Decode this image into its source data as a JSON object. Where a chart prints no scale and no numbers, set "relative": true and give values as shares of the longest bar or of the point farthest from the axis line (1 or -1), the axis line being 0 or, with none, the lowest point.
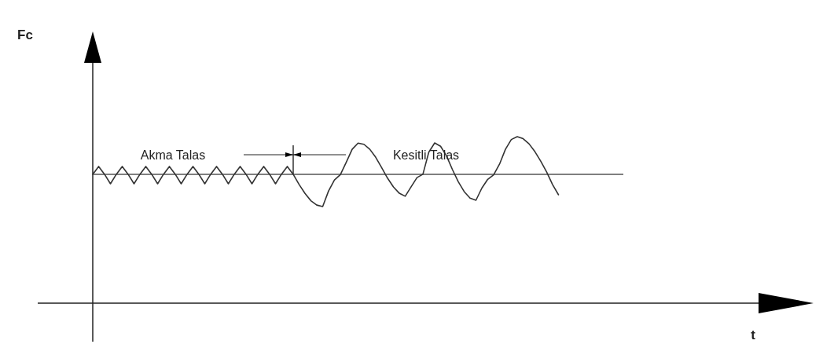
{
  "chart_data": {
    "type": "line",
    "relative": true,
    "categories": [
      null,
      null,
      null,
      null,
      null,
      null,
      null,
      null,
      null,
      null,
      null,
      null,
      null,
      null,
      null,
      null,
      null,
      null,
      null,
      null,
      null,
      null,
      null,
      null,
      null,
      null,
      null,
      null,
      null,
      null,
      null,
      null,
      null,
      null,
      null,
      null,
      null,
      null,
      null,
      null,
      null,
      null,
      null,
      null,
      null,
      null,
      null,
      null,
      null,
      null,
      null,
      null,
      null,
      null,
      null,
      null,
      null,
      null,
      null,
      null,
      null,
      null,
      null,
      null,
      null,
      null,
      null,
      null,
      null,
      null,
      null,
      null,
      null,
      null,
      null,
      null,
      null,
      null,
      null,
      null
    ],
    "series": [
      {
        "color": "#333333",
        "values": [
          0.774,
          0.821,
          0.774,
          0.717,
          0.774,
          0.821,
          0.774,
          0.717,
          0.774,
          0.821,
          0.774,
          0.717,
          0.774,
          0.821,
          0.774,
          0.717,
          0.774,
          0.821,
          0.774,
          0.717,
          0.774,
          0.821,
          0.774,
          0.717,
          0.774,
          0.821,
          0.774,
          0.717,
          0.774,
          0.821,
          0.774,
          0.717,
          0.774,
          0.821,
          0.774,
          0.713,
          0.659,
          0.615,
          0.589,
          0.58,
          0.674,
          0.74,
          0.772,
          0.846,
          0.924,
          0.961,
          0.954,
          0.924,
          0.876,
          0.814,
          0.751,
          0.698,
          0.66,
          0.642,
          0.699,
          0.754,
          0.774,
          0.907,
          0.962,
          0.942,
          0.885,
          0.803,
          0.729,
          0.67,
          0.631,
          0.618,
          0.691,
          0.744,
          0.771,
          0.835,
          0.924,
          0.983,
          1,
          0.988,
          0.957,
          0.91,
          0.852,
          0.787,
          0.712,
          0.651
        ]
      }
    ],
    "ref_lines": [
      {
        "axis": "y",
        "value": 0.774,
        "color": "#555555"
      }
    ],
    "annotations": [
      "Fc",
      "Akma Talas",
      "Kesitli Talas",
      "t"
    ]
  }
}
